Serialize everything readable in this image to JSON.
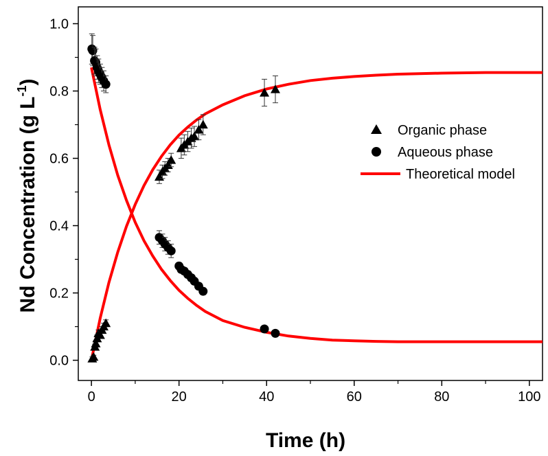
{
  "chart_data": {
    "type": "scatter",
    "xlabel": "Time (h)",
    "ylabel_main": "Nd Concentration (g L",
    "ylabel_sup": "-1",
    "ylabel_close": ")",
    "xlim": [
      -3,
      103
    ],
    "ylim": [
      -0.06,
      1.05
    ],
    "xticks": [
      0,
      20,
      40,
      60,
      80,
      100
    ],
    "xtick_labels": [
      "0",
      "20",
      "40",
      "60",
      "80",
      "100"
    ],
    "yticks": [
      0.0,
      0.2,
      0.4,
      0.6,
      0.8,
      1.0
    ],
    "ytick_labels": [
      "0.0",
      "0.2",
      "0.4",
      "0.6",
      "0.8",
      "1.0"
    ],
    "grid": false,
    "legend_position": "right",
    "colors": {
      "points": "#000000",
      "model": "#ff0000"
    },
    "series": [
      {
        "name": "Organic phase",
        "marker": "triangle",
        "x": [
          0.2,
          0.5,
          0.8,
          1.0,
          1.3,
          1.6,
          2.0,
          2.4,
          2.8,
          3.3,
          15.5,
          16.2,
          16.8,
          17.5,
          18.2,
          20.5,
          21.2,
          22.0,
          22.8,
          23.5,
          24.5,
          25.5,
          39.5,
          42.0
        ],
        "y": [
          0.005,
          0.01,
          0.04,
          0.05,
          0.065,
          0.08,
          0.075,
          0.09,
          0.1,
          0.11,
          0.545,
          0.56,
          0.57,
          0.58,
          0.595,
          0.63,
          0.64,
          0.65,
          0.66,
          0.665,
          0.685,
          0.7,
          0.795,
          0.805
        ],
        "err": [
          0.005,
          0.005,
          0.008,
          0.008,
          0.01,
          0.01,
          0.01,
          0.01,
          0.01,
          0.01,
          0.02,
          0.02,
          0.02,
          0.02,
          0.02,
          0.03,
          0.03,
          0.03,
          0.03,
          0.03,
          0.03,
          0.03,
          0.04,
          0.04
        ]
      },
      {
        "name": "Aqueous phase",
        "marker": "circle",
        "x": [
          0.1,
          0.3,
          0.7,
          1.0,
          1.3,
          1.6,
          2.0,
          2.4,
          2.8,
          3.3,
          15.5,
          16.2,
          16.8,
          17.5,
          18.2,
          20.0,
          20.5,
          21.2,
          22.0,
          22.8,
          23.5,
          24.5,
          25.5,
          39.5,
          42.0
        ],
        "y": [
          0.925,
          0.92,
          0.89,
          0.885,
          0.87,
          0.86,
          0.85,
          0.84,
          0.83,
          0.82,
          0.365,
          0.355,
          0.345,
          0.335,
          0.325,
          0.28,
          0.27,
          0.265,
          0.255,
          0.245,
          0.235,
          0.22,
          0.205,
          0.093,
          0.08
        ],
        "err": [
          0.045,
          0.045,
          0.04,
          0.04,
          0.035,
          0.035,
          0.03,
          0.03,
          0.03,
          0.025,
          0.02,
          0.02,
          0.02,
          0.02,
          0.02,
          0.01,
          0.01,
          0.01,
          0.01,
          0.01,
          0.01,
          0.01,
          0.01,
          0,
          0
        ]
      },
      {
        "name": "Theoretical model",
        "type": "line",
        "curves": [
          {
            "x": [
              0,
              2,
              4,
              6,
              8,
              10,
              12,
              14,
              16,
              18,
              20,
              22,
              24,
              26,
              30,
              35,
              40,
              45,
              50,
              55,
              60,
              65,
              70,
              80,
              90,
              100,
              103
            ],
            "y": [
              0.0,
              0.125,
              0.231,
              0.321,
              0.398,
              0.463,
              0.519,
              0.566,
              0.606,
              0.64,
              0.669,
              0.693,
              0.714,
              0.732,
              0.759,
              0.786,
              0.806,
              0.82,
              0.831,
              0.838,
              0.843,
              0.847,
              0.85,
              0.853,
              0.855,
              0.855,
              0.855
            ]
          },
          {
            "x": [
              0,
              2,
              4,
              6,
              8,
              10,
              12,
              14,
              16,
              18,
              20,
              22,
              24,
              26,
              30,
              35,
              40,
              45,
              50,
              55,
              60,
              65,
              70,
              80,
              90,
              100,
              103
            ],
            "y": [
              0.87,
              0.745,
              0.64,
              0.55,
              0.475,
              0.41,
              0.355,
              0.31,
              0.27,
              0.237,
              0.208,
              0.184,
              0.163,
              0.145,
              0.118,
              0.098,
              0.083,
              0.072,
              0.065,
              0.06,
              0.058,
              0.056,
              0.055,
              0.055,
              0.055,
              0.055,
              0.055
            ]
          }
        ]
      }
    ]
  }
}
